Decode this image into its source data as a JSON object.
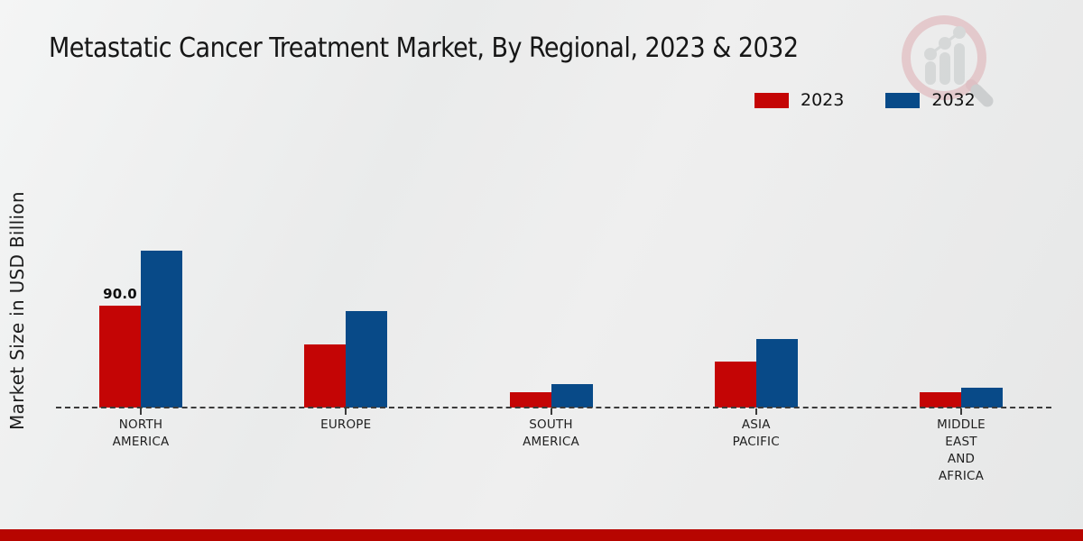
{
  "page": {
    "title": "Metastatic Cancer Treatment Market, By Regional, 2023 & 2032"
  },
  "y_axis": {
    "label": "Market Size in USD Billion"
  },
  "legend": {
    "items": [
      {
        "label": "2023",
        "color": "#c40505"
      },
      {
        "label": "2032",
        "color": "#084a88"
      }
    ]
  },
  "chart_data": {
    "type": "bar",
    "title": "Metastatic Cancer Treatment Market, By Regional, 2023 & 2032",
    "xlabel": "",
    "ylabel": "Market Size in USD Billion",
    "categories": [
      "NORTH AMERICA",
      "EUROPE",
      "SOUTH AMERICA",
      "ASIA PACIFIC",
      "MIDDLE EAST AND AFRICA"
    ],
    "series": [
      {
        "name": "2023",
        "color": "#c40505",
        "values": [
          90.0,
          55.4,
          13.5,
          40.6,
          13.5
        ]
      },
      {
        "name": "2032",
        "color": "#084a88",
        "values": [
          138.6,
          85.2,
          20.7,
          60.5,
          17.5
        ]
      }
    ],
    "data_labels": [
      {
        "series_index": 0,
        "category_index": 0,
        "text": "90.0"
      }
    ],
    "ylim": [
      0,
      150
    ],
    "grid": false,
    "legend_position": "top-right",
    "baseline_style": "dashed"
  },
  "footer": {
    "strip_color": "#b70500"
  },
  "watermark": {
    "name": "magnifier-bar-chart-logo"
  }
}
